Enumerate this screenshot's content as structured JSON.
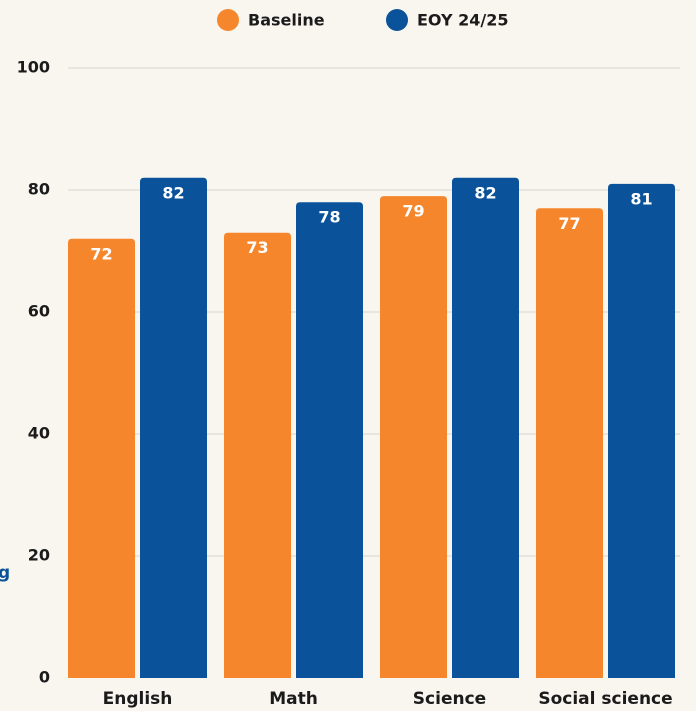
{
  "chart_data": {
    "type": "bar",
    "y_label": "g",
    "categories": [
      "English",
      "Math",
      "Science",
      "Social science"
    ],
    "series": [
      {
        "name": "Baseline",
        "color": "#f5862b",
        "values": [
          72,
          73,
          79,
          77
        ]
      },
      {
        "name": "EOY 24/25",
        "color": "#0a539b",
        "values": [
          82,
          78,
          82,
          81
        ]
      }
    ],
    "ylim": [
      0,
      100
    ],
    "yticks": [
      0,
      20,
      40,
      60,
      80,
      100
    ],
    "grid": true,
    "legend": "top"
  }
}
